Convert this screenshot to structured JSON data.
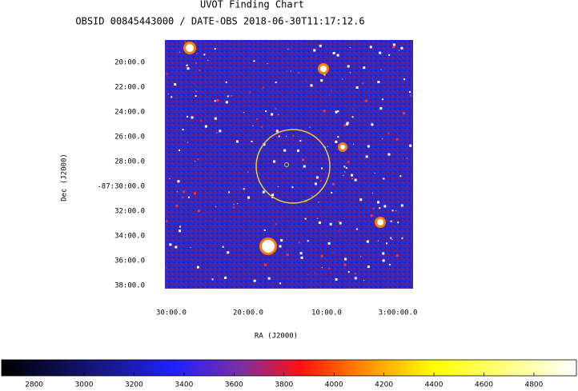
{
  "chart_data": {
    "type": "image",
    "title": "UVOT Finding Chart",
    "subtitle": "OBSID 00845443000 / DATE-OBS 2018-06-30T11:17:12.6",
    "xlabel": "RA (J2000)",
    "ylabel": "Dec (J2000)",
    "x_tick_labels": [
      "30:00.0",
      "20:00.0",
      "10:00.0",
      "3:00:00.0"
    ],
    "y_tick_labels": [
      "20:00.0",
      "22:00.0",
      "24:00.0",
      "26:00.0",
      "28:00.0",
      "-87:30:00.0",
      "32:00.0",
      "34:00.0",
      "36:00.0",
      "38:00.0"
    ],
    "colorbar": {
      "lim": [
        2670,
        4970
      ],
      "ticks": [
        2800,
        3000,
        3200,
        3400,
        3600,
        3800,
        4000,
        4200,
        4400,
        4600,
        4800
      ]
    }
  }
}
